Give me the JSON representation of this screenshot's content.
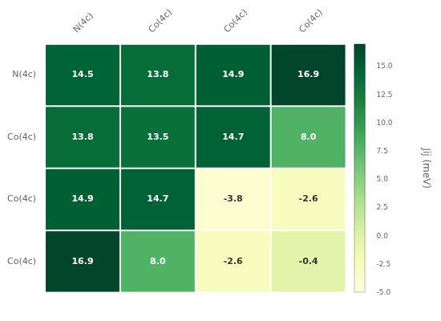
{
  "chart_data": {
    "type": "heatmap",
    "row_labels": [
      "N(4c)",
      "Co(4c)",
      "Co(4c)",
      "Co(4c)"
    ],
    "col_labels": [
      "N(4c)",
      "Co(4c)",
      "Co(4c)",
      "Co(4c)"
    ],
    "cells": [
      [
        14.5,
        13.8,
        14.9,
        16.9
      ],
      [
        13.8,
        13.5,
        14.7,
        8.0
      ],
      [
        14.9,
        14.7,
        -3.8,
        -2.6
      ],
      [
        16.9,
        8.0,
        -2.6,
        -0.4
      ]
    ],
    "value_labels": [
      [
        "14.5",
        "13.8",
        "14.9",
        "16.9"
      ],
      [
        "13.8",
        "13.5",
        "14.7",
        "8.0"
      ],
      [
        "14.9",
        "14.7",
        "-3.8",
        "-2.6"
      ],
      [
        "16.9",
        "8.0",
        "-2.6",
        "-0.4"
      ]
    ],
    "data_labels": true,
    "colorbar_lim": [
      -5.0,
      17.0
    ],
    "colorbar_ticks": [
      {
        "value": -5.0,
        "label": "-5.0"
      },
      -2.5,
      {
        "value": 0.0,
        "label": "0.0"
      },
      2.5,
      {
        "value": 5.0,
        "label": "5.0"
      },
      7.5,
      {
        "value": 10.0,
        "label": "10.0"
      },
      12.5,
      {
        "value": 15.0,
        "label": "15.0"
      }
    ],
    "colorbar_label": "Jij (meV)",
    "grid": false
  }
}
